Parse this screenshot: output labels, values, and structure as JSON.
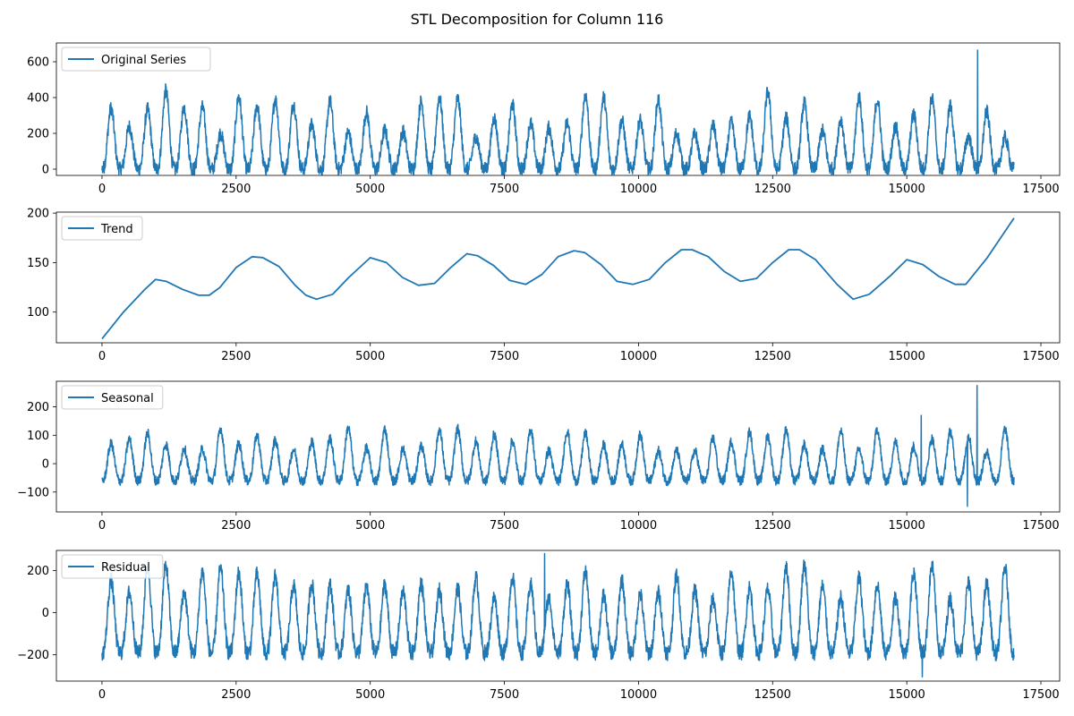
{
  "title": "STL Decomposition for Column 116",
  "colors": {
    "line": "#1f77b4",
    "axis": "#000000",
    "legend_border": "#cccccc"
  },
  "chart_data": [
    {
      "type": "line",
      "legend": "Original Series",
      "legend_position": "top-left",
      "xlim": [
        -850,
        17850
      ],
      "ylim": [
        -35,
        705
      ],
      "xticks": [
        0,
        2500,
        5000,
        7500,
        10000,
        12500,
        15000,
        17500
      ],
      "xtick_labels": [
        "0",
        "2500",
        "5000",
        "7500",
        "10000",
        "12500",
        "15000",
        "17500"
      ],
      "yticks": [
        0,
        200,
        400,
        600
      ],
      "ytick_labels": [
        "0",
        "200",
        "400",
        "600"
      ],
      "series_length": 17000,
      "cycles": 50,
      "amp_min": 150,
      "amp_max": 440,
      "baseline": 0,
      "spikes": [
        {
          "x": 16320,
          "y": 665
        }
      ]
    },
    {
      "type": "line",
      "legend": "Trend",
      "legend_position": "top-left",
      "xlim": [
        -850,
        17850
      ],
      "ylim": [
        69,
        201
      ],
      "xticks": [
        0,
        2500,
        5000,
        7500,
        10000,
        12500,
        15000,
        17500
      ],
      "xtick_labels": [
        "0",
        "2500",
        "5000",
        "7500",
        "10000",
        "12500",
        "15000",
        "17500"
      ],
      "yticks": [
        100,
        150,
        200
      ],
      "ytick_labels": [
        "100",
        "150",
        "200"
      ],
      "x": [
        0,
        400,
        800,
        1000,
        1200,
        1500,
        1800,
        2000,
        2200,
        2500,
        2800,
        3000,
        3300,
        3600,
        3800,
        4000,
        4300,
        4600,
        5000,
        5300,
        5600,
        5900,
        6200,
        6500,
        6800,
        7000,
        7300,
        7600,
        7900,
        8200,
        8500,
        8800,
        9000,
        9300,
        9600,
        9900,
        10200,
        10500,
        10800,
        11000,
        11300,
        11600,
        11900,
        12200,
        12500,
        12800,
        13000,
        13300,
        13700,
        14000,
        14300,
        14700,
        15000,
        15300,
        15600,
        15900,
        16100,
        16500,
        17000
      ],
      "y": [
        73,
        100,
        123,
        133,
        131,
        123,
        117,
        117,
        125,
        145,
        156,
        155,
        146,
        127,
        117,
        113,
        118,
        135,
        155,
        150,
        135,
        127,
        129,
        145,
        159,
        157,
        147,
        132,
        128,
        138,
        156,
        162,
        160,
        148,
        131,
        128,
        133,
        150,
        163,
        163,
        156,
        141,
        131,
        134,
        150,
        163,
        163,
        153,
        128,
        113,
        118,
        137,
        153,
        148,
        136,
        128,
        128,
        155,
        195
      ]
    },
    {
      "type": "line",
      "legend": "Seasonal",
      "legend_position": "top-left",
      "xlim": [
        -850,
        17850
      ],
      "ylim": [
        -170,
        290
      ],
      "xticks": [
        0,
        2500,
        5000,
        7500,
        10000,
        12500,
        15000,
        17500
      ],
      "xtick_labels": [
        "0",
        "2500",
        "5000",
        "7500",
        "10000",
        "12500",
        "15000",
        "17500"
      ],
      "yticks": [
        -100,
        0,
        100,
        200
      ],
      "ytick_labels": [
        "−100",
        "0",
        "100",
        "200"
      ],
      "series_length": 17000,
      "cycles": 50,
      "amp_min": 100,
      "amp_max": 190,
      "baseline": -60,
      "spikes": [
        {
          "x": 16310,
          "y": 275
        },
        {
          "x": 16130,
          "y": -150
        },
        {
          "x": 15270,
          "y": 170
        }
      ]
    },
    {
      "type": "line",
      "legend": "Residual",
      "legend_position": "top-left",
      "xlim": [
        -850,
        17850
      ],
      "ylim": [
        -325,
        295
      ],
      "xticks": [
        0,
        2500,
        5000,
        7500,
        10000,
        12500,
        15000,
        17500
      ],
      "xtick_labels": [
        "0",
        "2500",
        "5000",
        "7500",
        "10000",
        "12500",
        "15000",
        "17500"
      ],
      "yticks": [
        -200,
        0,
        200
      ],
      "ytick_labels": [
        "−200",
        "0",
        "200"
      ],
      "series_length": 17000,
      "cycles": 50,
      "amp_min": 250,
      "amp_max": 420,
      "baseline": -190,
      "spikes": [
        {
          "x": 15290,
          "y": -305
        },
        {
          "x": 8250,
          "y": 280
        }
      ]
    }
  ]
}
